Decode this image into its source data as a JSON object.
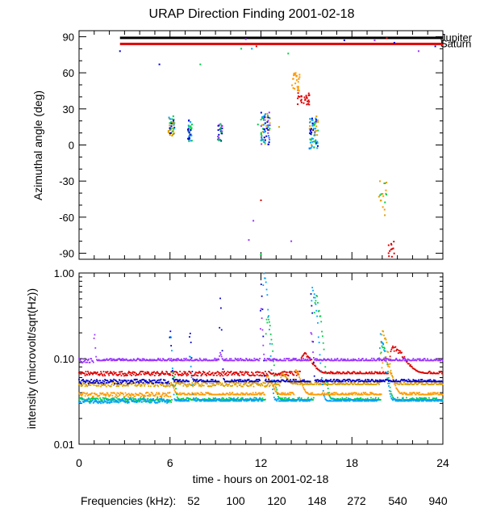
{
  "chart_data": [
    {
      "type": "scatter",
      "panel": "azimuth",
      "title": "URAP Direction Finding  2001-02-18",
      "xlabel": "",
      "ylabel": "Azimuthal angle (deg)",
      "xlim": [
        0,
        24
      ],
      "ylim": [
        -95,
        95
      ],
      "yticks": [
        90,
        60,
        30,
        0,
        -30,
        -60,
        -90
      ],
      "tick_labels_y": [
        "90",
        "60",
        "30",
        "0",
        "-30",
        "-60",
        "-90"
      ],
      "reference_lines": [
        {
          "name": "Jupiter",
          "label": "Jupiter",
          "color": "#000000",
          "y": 89,
          "x_start": 2.7,
          "x_end": 24
        },
        {
          "name": "Saturn",
          "label": "Saturn",
          "color": "#dd0000",
          "y": 84,
          "x_start": 2.7,
          "x_end": 24
        }
      ],
      "clusters": [
        {
          "time": 6.1,
          "spread": 0.2,
          "y_min": 6,
          "y_max": 24,
          "colors": [
            "#00a0ff",
            "#00cc44",
            "#dda000",
            "#0000cc"
          ],
          "count": 46
        },
        {
          "time": 7.3,
          "spread": 0.15,
          "y_min": 3,
          "y_max": 21,
          "colors": [
            "#00a0ff",
            "#00cc44",
            "#0000cc"
          ],
          "count": 32
        },
        {
          "time": 9.3,
          "spread": 0.15,
          "y_min": 3,
          "y_max": 19,
          "colors": [
            "#00cc44",
            "#0000cc",
            "#9933ff"
          ],
          "count": 28
        },
        {
          "time": 12.3,
          "spread": 0.3,
          "y_min": 0,
          "y_max": 28,
          "colors": [
            "#00a0ff",
            "#00cc44",
            "#0000cc",
            "#dda000",
            "#9933ff"
          ],
          "count": 70
        },
        {
          "time": 14.3,
          "spread": 0.25,
          "y_min": 45,
          "y_max": 60,
          "colors": [
            "#ff9900"
          ],
          "count": 26
        },
        {
          "time": 14.8,
          "spread": 0.45,
          "y_min": 33,
          "y_max": 44,
          "colors": [
            "#dd0000"
          ],
          "count": 26
        },
        {
          "time": 15.5,
          "spread": 0.3,
          "y_min": -3,
          "y_max": 25,
          "colors": [
            "#00a0ff",
            "#0000cc",
            "#00cc44",
            "#dda000"
          ],
          "count": 70
        },
        {
          "time": 20.0,
          "spread": 0.3,
          "y_min": -60,
          "y_max": -30,
          "colors": [
            "#00cc44",
            "#dda000",
            "#ff9900"
          ],
          "count": 18
        },
        {
          "time": 20.6,
          "spread": 0.2,
          "y_min": -93,
          "y_max": -78,
          "colors": [
            "#dd0000"
          ],
          "count": 12
        }
      ],
      "scattered_points": [
        {
          "time": 2.7,
          "y": 78,
          "color": "#0000cc"
        },
        {
          "time": 5.3,
          "y": 67,
          "color": "#0000cc"
        },
        {
          "time": 8.0,
          "y": 67,
          "color": "#00cc44"
        },
        {
          "time": 10.7,
          "y": 80,
          "color": "#00cc44"
        },
        {
          "time": 11.0,
          "y": 88,
          "color": "#9933ff"
        },
        {
          "time": 11.4,
          "y": 80,
          "color": "#00a0ff"
        },
        {
          "time": 11.7,
          "y": 82,
          "color": "#dd0000"
        },
        {
          "time": 11.8,
          "y": 17,
          "color": "#00cc44"
        },
        {
          "time": 12.0,
          "y": -46,
          "color": "#dd0000"
        },
        {
          "time": 11.5,
          "y": -63,
          "color": "#9933ff"
        },
        {
          "time": 11.2,
          "y": -79,
          "color": "#9933ff"
        },
        {
          "time": 12.0,
          "y": -91,
          "color": "#00cc44"
        },
        {
          "time": 13.2,
          "y": 15,
          "color": "#dda000"
        },
        {
          "time": 13.8,
          "y": 76,
          "color": "#00cc44"
        },
        {
          "time": 14.0,
          "y": -80,
          "color": "#9933ff"
        },
        {
          "time": 17.5,
          "y": 87,
          "color": "#0000cc"
        },
        {
          "time": 19.5,
          "y": 87,
          "color": "#9933ff"
        },
        {
          "time": 20.3,
          "y": 89,
          "color": "#dd0000"
        },
        {
          "time": 20.8,
          "y": 85,
          "color": "#0000cc"
        },
        {
          "time": 22.4,
          "y": 78,
          "color": "#9933ff"
        },
        {
          "time": 23.5,
          "y": 82,
          "color": "#0000cc"
        }
      ]
    },
    {
      "type": "line",
      "panel": "intensity",
      "xlabel": "time - hours on 2001-02-18",
      "ylabel": "intensity (microvolt/sqrt(Hz))",
      "xlim": [
        0,
        24
      ],
      "ylim": [
        0.01,
        1.0
      ],
      "yscale": "log",
      "xticks": [
        0,
        6,
        12,
        18,
        24
      ],
      "tick_labels_x": [
        "0",
        "6",
        "12",
        "18",
        "24"
      ],
      "yticks": [
        1.0,
        0.1,
        0.01
      ],
      "tick_labels_y": [
        "1.00",
        "0.10",
        "0.01"
      ],
      "series": [
        {
          "name": "52",
          "color": "#dd0000",
          "baseline": 0.067,
          "peaks": [
            [
              14.8,
              0.115,
              0.5
            ],
            [
              20.7,
              0.13,
              0.7
            ]
          ]
        },
        {
          "name": "100",
          "color": "#ff9900",
          "baseline": 0.038,
          "peaks": [
            [
              6.1,
              0.05,
              0.15
            ],
            [
              12.4,
              0.06,
              0.3
            ],
            [
              14.3,
              0.07,
              0.3
            ],
            [
              20.1,
              0.1,
              0.4
            ]
          ]
        },
        {
          "name": "120",
          "color": "#dda000",
          "baseline": 0.05,
          "peaks": [
            [
              13.4,
              0.065,
              0.3
            ],
            [
              20.0,
              0.2,
              0.3
            ]
          ]
        },
        {
          "name": "148",
          "color": "#00cc44",
          "baseline": 0.033,
          "peaks": [
            [
              6.2,
              0.07,
              0.12
            ],
            [
              12.4,
              0.3,
              0.25
            ],
            [
              15.6,
              0.5,
              0.3
            ],
            [
              20.0,
              0.15,
              0.25
            ]
          ]
        },
        {
          "name": "272",
          "color": "#00a0ff",
          "baseline": 0.032,
          "peaks": [
            [
              6.0,
              0.2,
              0.1
            ],
            [
              7.3,
              0.1,
              0.1
            ],
            [
              12.2,
              0.9,
              0.2
            ],
            [
              15.4,
              0.6,
              0.25
            ],
            [
              19.9,
              0.18,
              0.25
            ]
          ]
        },
        {
          "name": "540",
          "color": "#0000cc",
          "baseline": 0.054,
          "peaks": [
            [
              6.0,
              0.2,
              0.08
            ],
            [
              7.3,
              0.2,
              0.08
            ],
            [
              9.3,
              0.5,
              0.08
            ],
            [
              12.0,
              0.8,
              0.08
            ],
            [
              15.3,
              0.55,
              0.08
            ]
          ]
        },
        {
          "name": "940",
          "color": "#9933ff",
          "baseline": 0.095,
          "peaks": [
            [
              1.0,
              0.2,
              0.06
            ],
            [
              9.3,
              0.12,
              0.08
            ],
            [
              12.0,
              0.4,
              0.08
            ],
            [
              15.3,
              0.2,
              0.08
            ]
          ]
        }
      ]
    }
  ],
  "legend": {
    "label": "Frequencies (kHz):",
    "items": [
      {
        "text": "52",
        "color": "#dd0000"
      },
      {
        "text": "100",
        "color": "#ff9900"
      },
      {
        "text": "120",
        "color": "#dda000"
      },
      {
        "text": "148",
        "color": "#00cc44"
      },
      {
        "text": "272",
        "color": "#00a0ff"
      },
      {
        "text": "540",
        "color": "#0000cc"
      },
      {
        "text": "940",
        "color": "#9933ff"
      }
    ]
  }
}
